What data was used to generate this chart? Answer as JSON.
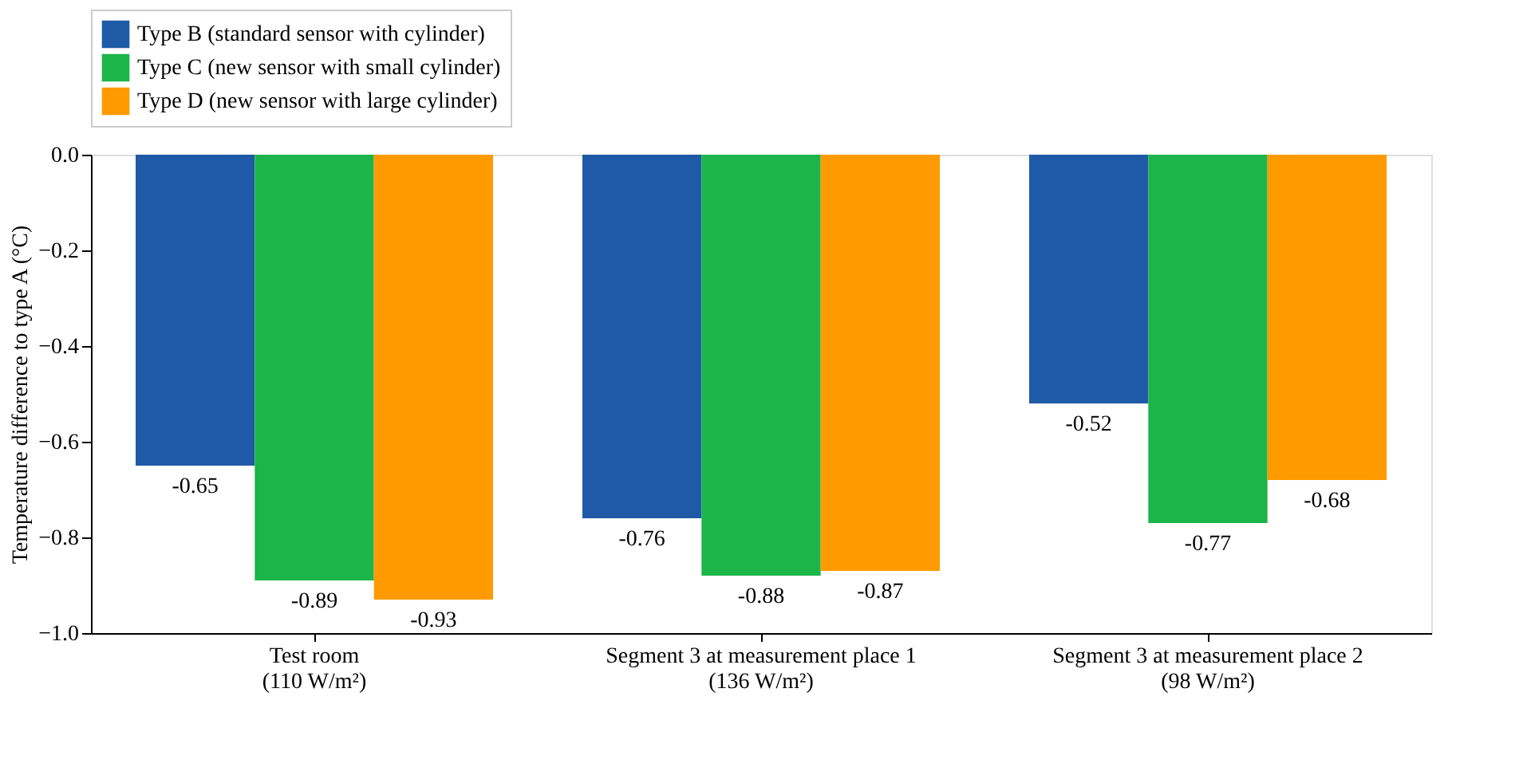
{
  "chart_data": {
    "type": "bar",
    "ylabel": "Temperature difference to type A (°C)",
    "categories": [
      "Test room\n(110 W/m²)",
      "Segment 3 at measurement place 1\n(136 W/m²)",
      "Segment 3 at measurement place 2\n(98 W/m²)"
    ],
    "series": [
      {
        "name": "Type B (standard sensor with cylinder)",
        "color": "#1f5aa6",
        "values": [
          -0.65,
          -0.76,
          -0.52
        ]
      },
      {
        "name": "Type C (new sensor with small cylinder)",
        "color": "#1cb54a",
        "values": [
          -0.89,
          -0.88,
          -0.77
        ]
      },
      {
        "name": "Type D (new sensor with large cylinder)",
        "color": "#ff9a00",
        "values": [
          -0.93,
          -0.87,
          -0.68
        ]
      }
    ],
    "ylim": [
      -1.0,
      0.0
    ],
    "yticks": [
      {
        "value": 0.0,
        "label": "0.0"
      },
      {
        "value": -0.2,
        "label": "−0.2"
      },
      {
        "value": -0.4,
        "label": "−0.4"
      },
      {
        "value": -0.6,
        "label": "−0.6"
      },
      {
        "value": -0.8,
        "label": "−0.8"
      },
      {
        "value": -1.0,
        "label": "−1.0"
      }
    ],
    "data_labels": true,
    "grid": false,
    "legend": "top"
  }
}
